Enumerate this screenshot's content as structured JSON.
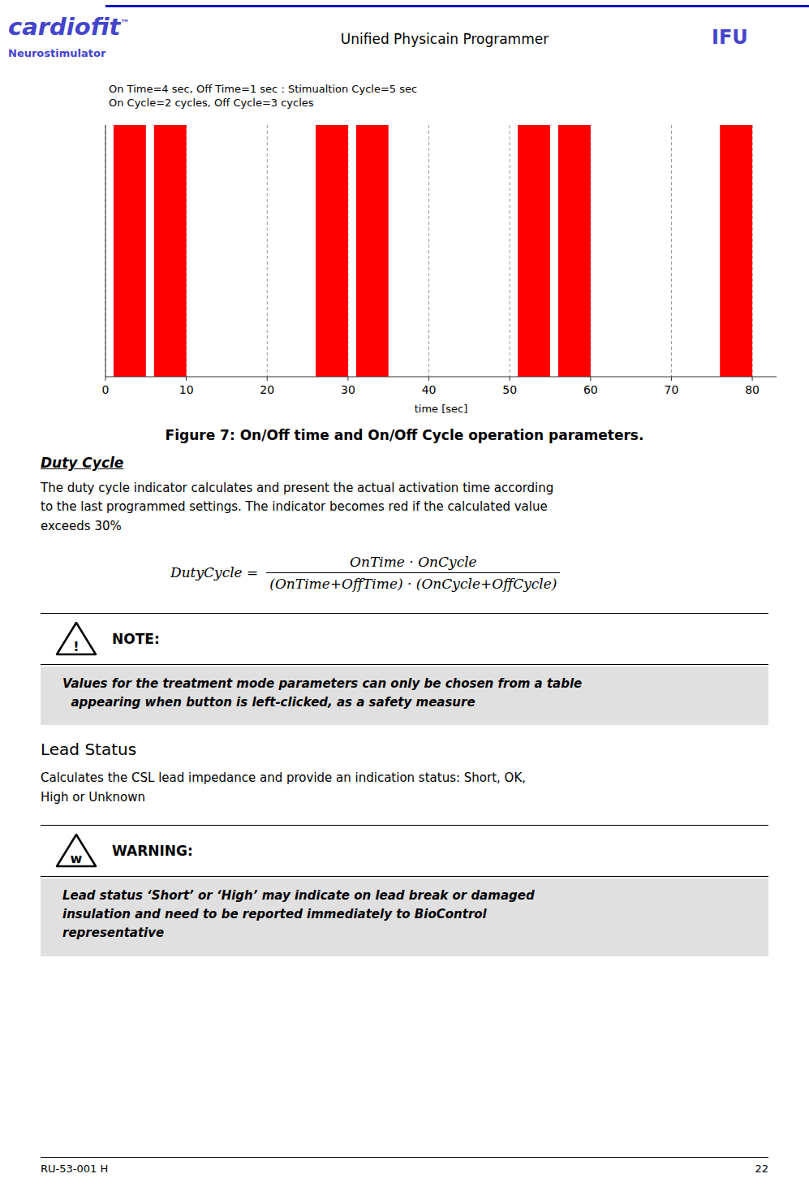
{
  "header": {
    "logo": "cardiofit",
    "logo_mark": "™",
    "logo_subtitle": "Neurostimulator",
    "title_left": "Unified Physicain Programmer",
    "title_right": "IFU",
    "line_color": "#0000CC",
    "logo_color": "#4444CC",
    "subtitle_color": "#4444CC"
  },
  "chart_data": {
    "type": "bar",
    "x": [
      1,
      6,
      26,
      31,
      51,
      56,
      76
    ],
    "widths": [
      4,
      4,
      4,
      4,
      4,
      4,
      4
    ],
    "values": [
      1,
      1,
      1,
      1,
      1,
      1,
      1
    ],
    "color": "#FF0000",
    "xlim": [
      0,
      83
    ],
    "ylim": [
      0,
      1
    ],
    "xticks": [
      0,
      10,
      20,
      30,
      40,
      50,
      60,
      70,
      80
    ],
    "xlabel": "time [sec]",
    "annotation": "On Time=4 sec, Off Time=1 sec : Stimualtion Cycle=5 sec\nOn Cycle=2 cycles, Off Cycle=3 cycles",
    "grid": true,
    "tick_labels": "x"
  },
  "figure_caption": "Figure 7: On/Off time and On/Off Cycle operation parameters.",
  "duty_cycle": {
    "title": "Duty Cycle",
    "body": "The duty cycle indicator calculates and present the actual activation time according\nto the last programmed settings. The indicator becomes red if the calculated value\nexceeds 30%",
    "formula_lhs": "DutyCycle =",
    "formula_numerator": "OnTime · OnCycle",
    "formula_denominator": "(OnTime+OffTime) · (OnCycle+OffCycle)"
  },
  "note": {
    "symbol": "!",
    "label": "NOTE:",
    "body": "Values for the treatment mode parameters can only be chosen from a table\n  appearing when button is left-clicked, as a safety measure"
  },
  "lead_status": {
    "title": "Lead Status",
    "body": "Calculates the CSL lead impedance and provide an indication status: Short, OK,\nHigh or Unknown"
  },
  "warning": {
    "symbol": "w",
    "label": "WARNING:",
    "body": "Lead status ‘Short’ or ‘High’ may indicate on lead break or damaged\ninsulation and need to be reported immediately to BioControl\nrepresentative"
  },
  "footer": {
    "left": "RU-53-001 H",
    "right": "22"
  }
}
